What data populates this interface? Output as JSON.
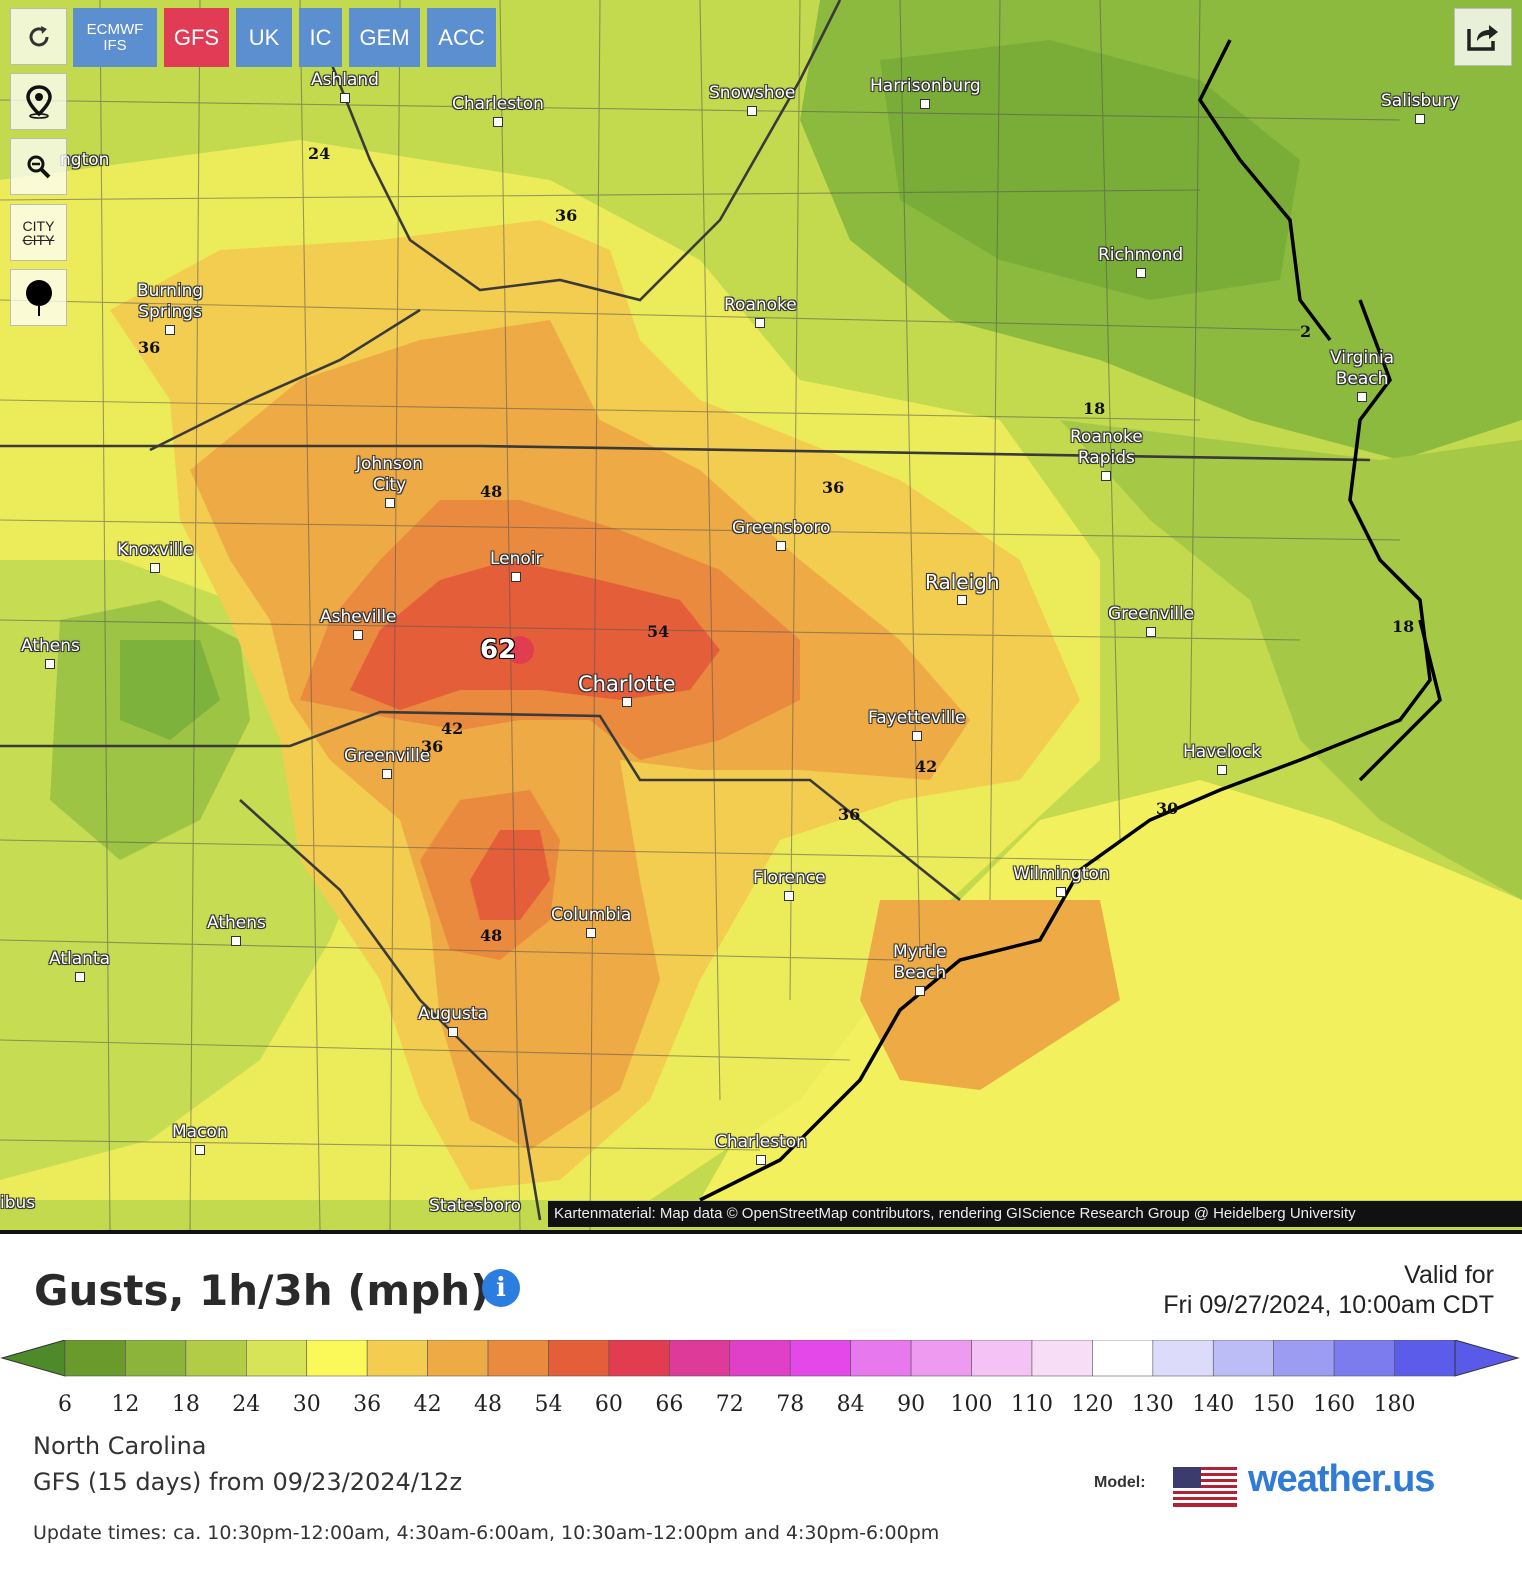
{
  "toolbar": {
    "refresh_icon": "refresh-icon",
    "location_icon": "location-pin-icon",
    "zoom_icon": "zoom-out-icon",
    "city_toggle_label_1": "CITY",
    "city_toggle_label_2": "CITY",
    "marker_icon": "balloon-marker-icon",
    "share_icon": "share-icon"
  },
  "models": [
    {
      "label": "ECMWF",
      "label2": "IFS",
      "active": false
    },
    {
      "label": "GFS",
      "active": true
    },
    {
      "label": "UK",
      "active": false
    },
    {
      "label": "IC",
      "active": false
    },
    {
      "label": "GEM",
      "active": false
    },
    {
      "label": "ACC",
      "active": false
    }
  ],
  "cities": [
    {
      "name": "Ashland"
    },
    {
      "name": "Charleston"
    },
    {
      "name": "Snowshoe"
    },
    {
      "name": "Harrisonburg"
    },
    {
      "name": "Salisbury"
    },
    {
      "name": "ngton"
    },
    {
      "name": "Richmond"
    },
    {
      "name": "Burning"
    },
    {
      "name": "Springs"
    },
    {
      "name": "Roanoke"
    },
    {
      "name": "Virginia"
    },
    {
      "name": "Beach"
    },
    {
      "name": "Roanoke"
    },
    {
      "name": "Rapids"
    },
    {
      "name": "Johnson"
    },
    {
      "name": "City"
    },
    {
      "name": "Greensboro"
    },
    {
      "name": "Knoxville"
    },
    {
      "name": "Lenoir"
    },
    {
      "name": "Raleigh"
    },
    {
      "name": "Greenville"
    },
    {
      "name": "Asheville"
    },
    {
      "name": "Athens"
    },
    {
      "name": "Charlotte"
    },
    {
      "name": "Fayetteville"
    },
    {
      "name": "Havelock"
    },
    {
      "name": "Greenville"
    },
    {
      "name": "Florence"
    },
    {
      "name": "Wilmington"
    },
    {
      "name": "Athens"
    },
    {
      "name": "Columbia"
    },
    {
      "name": "Atlanta"
    },
    {
      "name": "Myrtle"
    },
    {
      "name": "Beach"
    },
    {
      "name": "Augusta"
    },
    {
      "name": "Macon"
    },
    {
      "name": "Charleston"
    },
    {
      "name": "Statesboro"
    },
    {
      "name": "ibus"
    }
  ],
  "isolines": [
    "24",
    "36",
    "36",
    "18",
    "48",
    "36",
    "54",
    "62",
    "42",
    "36",
    "42",
    "36",
    "30",
    "18",
    "48",
    "2"
  ],
  "attribution": "Kartenmaterial: Map data © OpenStreetMap contributors, rendering GIScience Research Group @ Heidelberg University",
  "title": "Gusts, 1h/3h (mph)",
  "info_icon": "info-icon",
  "valid_label": "Valid for",
  "valid_time": "Fri 09/27/2024, 10:00am CDT",
  "legend": {
    "ticks": [
      "6",
      "12",
      "18",
      "24",
      "30",
      "36",
      "42",
      "48",
      "54",
      "60",
      "66",
      "72",
      "78",
      "84",
      "90",
      "100",
      "110",
      "120",
      "130",
      "140",
      "150",
      "160",
      "180"
    ],
    "colors": [
      "#6a9a2c",
      "#8cb43a",
      "#b2cc48",
      "#d8e458",
      "#fbf95a",
      "#f4cd50",
      "#eeaa45",
      "#ea8a3e",
      "#e55e3a",
      "#e13c50",
      "#dd3a9a",
      "#e040c8",
      "#e448e8",
      "#e878ee",
      "#ee9af0",
      "#f4c2f4",
      "#f8ddf6",
      "#ffffff",
      "#dcdcfa",
      "#bcbcf6",
      "#9c9cf2",
      "#7c7cee",
      "#5c5cea"
    ],
    "left_arrow_color": "#4f8a2a",
    "right_arrow_color": "#5a5ae8"
  },
  "region": "North Carolina",
  "run": "GFS  (15 days)  from 09/23/2024/12z",
  "update_times": "Update times: ca. 10:30pm-12:00am, 4:30am-6:00am, 10:30am-12:00pm and 4:30pm-6:00pm",
  "model_label": "Model:",
  "flag_icon": "us-flag-icon",
  "brand": "weather.us"
}
